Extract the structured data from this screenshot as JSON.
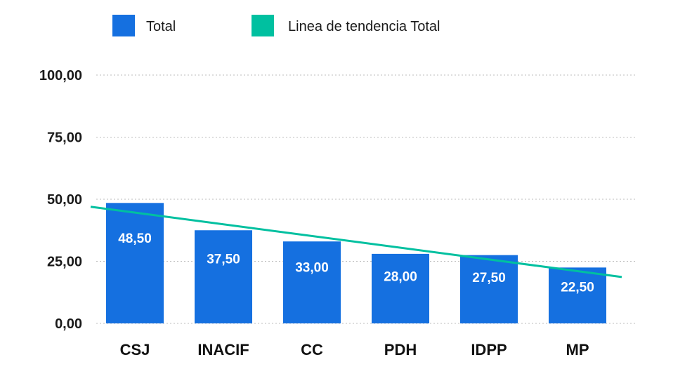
{
  "chart_data": {
    "type": "bar",
    "categories": [
      "CSJ",
      "INACIF",
      "CC",
      "PDH",
      "IDPP",
      "MP"
    ],
    "series": [
      {
        "name": "Total",
        "values": [
          48.5,
          37.5,
          33.0,
          28.0,
          27.5,
          22.5
        ],
        "color": "#1570e0"
      }
    ],
    "data_labels": [
      "48,50",
      "37,50",
      "33,00",
      "28,00",
      "27,50",
      "22,50"
    ],
    "trendline": {
      "name": "Linea de tendencia Total",
      "color": "#00c0a0"
    },
    "yticks": [
      {
        "value": 0,
        "label": "0,00"
      },
      {
        "value": 25,
        "label": "25,00"
      },
      {
        "value": 50,
        "label": "50,00"
      },
      {
        "value": 75,
        "label": "75,00"
      },
      {
        "value": 100,
        "label": "100,00"
      }
    ],
    "ylim": [
      0,
      100
    ],
    "title": "",
    "xlabel": "",
    "ylabel": "",
    "grid": true,
    "legend_position": "top-left"
  }
}
